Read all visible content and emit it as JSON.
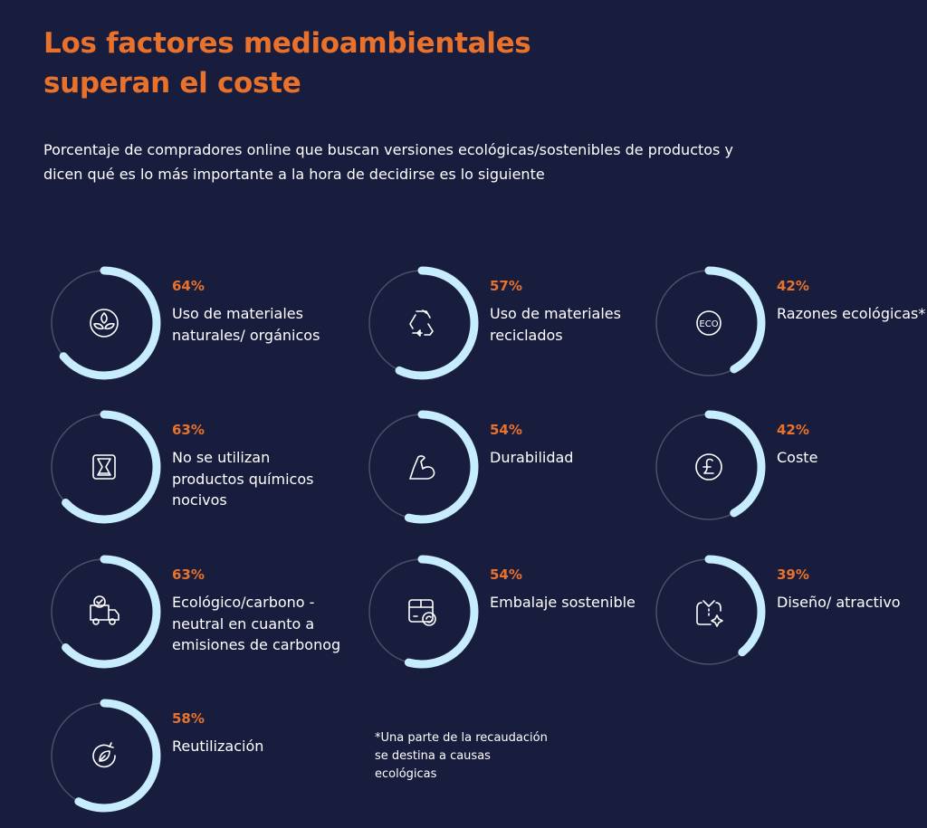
{
  "title": "Los factores medioambientales superan el coste",
  "subtitle": "Porcentaje de compradores online que buscan versiones ecológicas/sostenibles de productos y dicen qué es lo más importante a la hora de decidirse es lo siguiente",
  "footnote": "*Una parte de la recaudación se destina a causas ecológicas",
  "colors": {
    "background": "#181d3e",
    "accent": "#e8722c",
    "ring": "#c6ecfd",
    "track": "#4a4f6a"
  },
  "chart_data": {
    "type": "radial-progress",
    "title": "Los factores medioambientales superan el coste",
    "unit": "%",
    "max": 100,
    "items": [
      {
        "label": "Uso de materiales naturales/ orgánicos",
        "value": 64,
        "pct": "64%",
        "icon": "leaf-icon"
      },
      {
        "label": "Uso de materiales reciclados",
        "value": 57,
        "pct": "57%",
        "icon": "recycle-icon"
      },
      {
        "label": "Razones ecológicas*.",
        "value": 42,
        "pct": "42%",
        "icon": "eco-badge-icon"
      },
      {
        "label": "No se utilizan productos químicos nocivos",
        "value": 63,
        "pct": "63%",
        "icon": "flask-icon"
      },
      {
        "label": "Durabilidad",
        "value": 54,
        "pct": "54%",
        "icon": "flexed-arm-icon"
      },
      {
        "label": "Coste",
        "value": 42,
        "pct": "42%",
        "icon": "pound-icon"
      },
      {
        "label": "Ecológico/carbono -neutral en cuanto a emisiones de carbonog",
        "value": 63,
        "pct": "63%",
        "icon": "delivery-truck-icon"
      },
      {
        "label": "Embalaje sostenible",
        "value": 54,
        "pct": "54%",
        "icon": "recycled-box-icon"
      },
      {
        "label": "Diseño/ atractivo",
        "value": 39,
        "pct": "39%",
        "icon": "shirt-sparkle-icon"
      },
      {
        "label": "Reutilización",
        "value": 58,
        "pct": "58%",
        "icon": "reuse-leaf-icon"
      }
    ]
  }
}
